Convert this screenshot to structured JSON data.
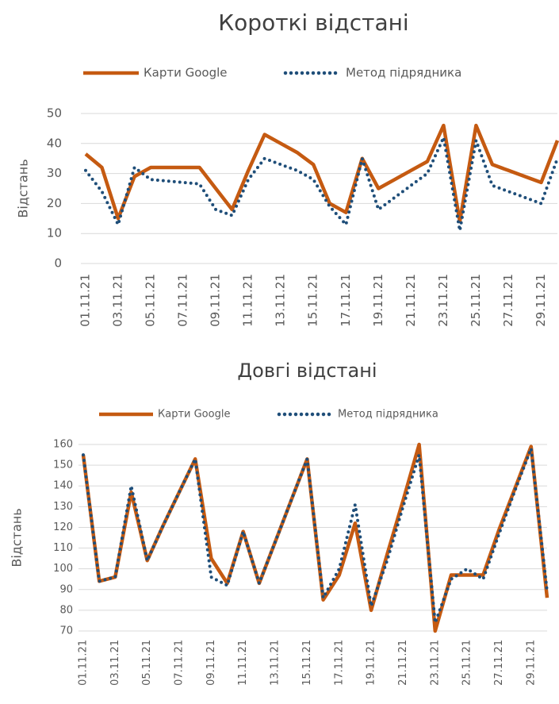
{
  "chart_data": [
    {
      "type": "line",
      "title": "Короткі відстані",
      "y_label": "Відстань",
      "categories": [
        "01.11.21",
        null,
        "03.11.21",
        null,
        "05.11.21",
        null,
        "07.11.21",
        null,
        "09.11.21",
        null,
        "11.11.21",
        null,
        "13.11.21",
        null,
        "15.11.21",
        null,
        "17.11.21",
        null,
        "19.11.21",
        null,
        "21.11.21",
        null,
        "23.11.21",
        null,
        "25.11.21",
        null,
        "27.11.21",
        null,
        "29.11.21",
        null
      ],
      "series": [
        {
          "name": "Карти Google",
          "color": "#c55a11",
          "style": "solid",
          "values": [
            36.5,
            32,
            15,
            29,
            32,
            32,
            32,
            32,
            25,
            18,
            31,
            43,
            40,
            37,
            33,
            20,
            17,
            35,
            25,
            28,
            31,
            34,
            46,
            14,
            46,
            33,
            31,
            29,
            27,
            41
          ]
        },
        {
          "name": "Метод підрядника",
          "color": "#1f4e79",
          "style": "dotted",
          "values": [
            31,
            24,
            13,
            32,
            28,
            27.5,
            27,
            26.5,
            18,
            16,
            28,
            35,
            33,
            31,
            28,
            19,
            13,
            35,
            18,
            22,
            26,
            30,
            42,
            11,
            41,
            26,
            24,
            22,
            20,
            35
          ]
        }
      ],
      "ylim": [
        0,
        50
      ],
      "yticks": [
        0,
        10,
        20,
        30,
        40,
        50
      ],
      "grid": true,
      "legend": "top"
    },
    {
      "type": "line",
      "title": "Довгі відстані",
      "y_label": "Відстань",
      "categories": [
        "01.11.21",
        null,
        "03.11.21",
        null,
        "05.11.21",
        null,
        "07.11.21",
        null,
        "09.11.21",
        null,
        "11.11.21",
        null,
        "13.11.21",
        null,
        "15.11.21",
        null,
        "17.11.21",
        null,
        "19.11.21",
        null,
        "21.11.21",
        null,
        "23.11.21",
        null,
        "25.11.21",
        null,
        "27.11.21",
        null,
        "29.11.21",
        null
      ],
      "series": [
        {
          "name": "Карти Google",
          "color": "#c55a11",
          "style": "solid",
          "values": [
            155,
            94,
            96,
            137,
            104,
            121,
            137,
            153,
            105,
            93,
            118,
            93,
            113,
            133,
            153,
            85,
            97,
            122,
            80,
            107,
            133,
            160,
            70,
            97,
            97,
            97,
            119,
            139,
            159,
            86
          ]
        },
        {
          "name": "Метод підрядника",
          "color": "#1f4e79",
          "style": "dotted",
          "values": [
            155,
            94,
            96,
            140,
            104,
            121,
            137,
            153,
            96,
            92,
            118,
            93,
            113,
            133,
            153,
            86,
            100,
            131,
            82,
            104,
            130,
            155,
            74,
            95,
            100,
            95,
            117,
            138,
            158,
            89
          ]
        }
      ],
      "ylim": [
        70,
        160
      ],
      "yticks": [
        70,
        80,
        90,
        100,
        110,
        120,
        130,
        140,
        150,
        160
      ],
      "grid": true,
      "legend": "top"
    }
  ]
}
